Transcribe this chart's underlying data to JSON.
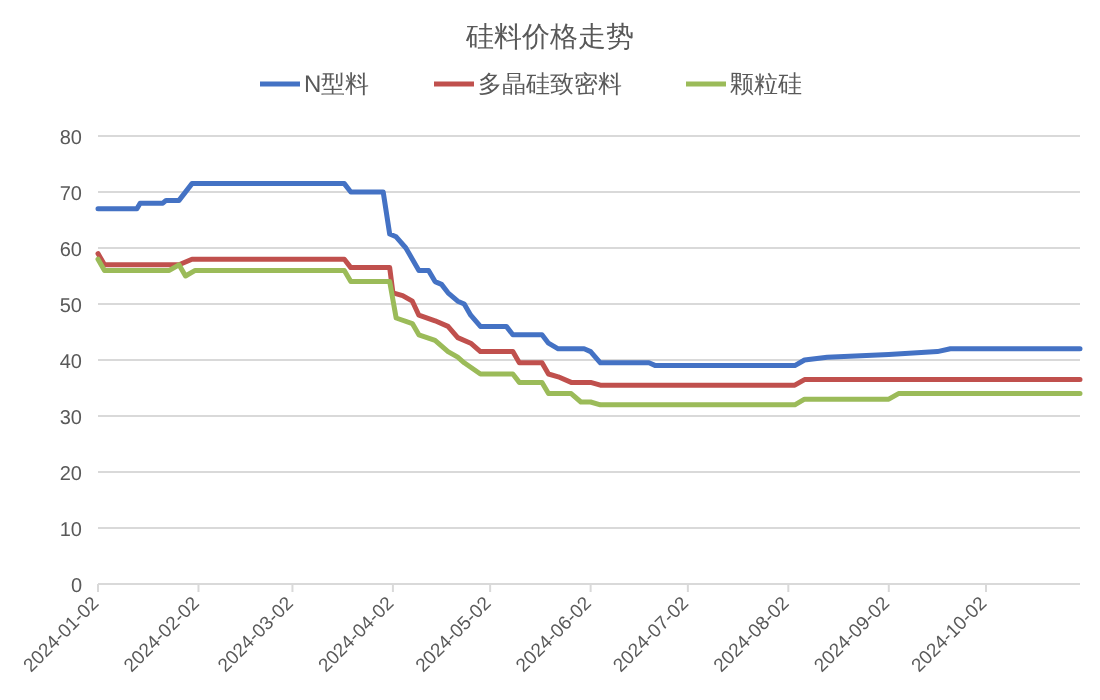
{
  "chart_data": {
    "type": "line",
    "title": "硅料价格走势",
    "legend": "top",
    "grid": "y",
    "xlim": [
      "2024-01-02",
      "2024-10-31"
    ],
    "xticks": [
      "2024-01-02",
      "2024-02-02",
      "2024-03-02",
      "2024-04-02",
      "2024-05-02",
      "2024-06-02",
      "2024-07-02",
      "2024-08-02",
      "2024-09-02",
      "2024-10-02"
    ],
    "ylim": [
      0,
      80
    ],
    "yticks": [
      0,
      10,
      20,
      30,
      40,
      50,
      60,
      70,
      80
    ],
    "series": [
      {
        "name": "N型料",
        "color": "#4472c4",
        "x": [
          "2024-01-02",
          "2024-01-14",
          "2024-01-15",
          "2024-01-22",
          "2024-01-23",
          "2024-01-27",
          "2024-01-31",
          "2024-03-18",
          "2024-03-20",
          "2024-03-30",
          "2024-04-01",
          "2024-04-03",
          "2024-04-06",
          "2024-04-08",
          "2024-04-10",
          "2024-04-13",
          "2024-04-15",
          "2024-04-17",
          "2024-04-19",
          "2024-04-22",
          "2024-04-24",
          "2024-04-26",
          "2024-04-29",
          "2024-05-07",
          "2024-05-09",
          "2024-05-18",
          "2024-05-20",
          "2024-05-23",
          "2024-05-31",
          "2024-06-02",
          "2024-06-05",
          "2024-06-20",
          "2024-06-22",
          "2024-08-04",
          "2024-08-07",
          "2024-08-14",
          "2024-09-02",
          "2024-09-17",
          "2024-09-21",
          "2024-10-31"
        ],
        "values": [
          67,
          67,
          68,
          68,
          68.5,
          68.5,
          71.5,
          71.5,
          70,
          70,
          62.5,
          62,
          60,
          58,
          56,
          56,
          54,
          53.5,
          52,
          50.5,
          50,
          48,
          46,
          46,
          44.5,
          44.5,
          43,
          42,
          42,
          41.5,
          39.5,
          39.5,
          39,
          39,
          40,
          40.5,
          41,
          41.5,
          42,
          42
        ]
      },
      {
        "name": "多晶硅致密料",
        "color": "#c0504d",
        "x": [
          "2024-01-02",
          "2024-01-04",
          "2024-01-27",
          "2024-01-31",
          "2024-03-18",
          "2024-03-20",
          "2024-04-01",
          "2024-04-02",
          "2024-04-05",
          "2024-04-08",
          "2024-04-10",
          "2024-04-15",
          "2024-04-19",
          "2024-04-22",
          "2024-04-26",
          "2024-04-29",
          "2024-05-09",
          "2024-05-11",
          "2024-05-18",
          "2024-05-20",
          "2024-05-23",
          "2024-05-27",
          "2024-06-02",
          "2024-06-05",
          "2024-08-04",
          "2024-08-07",
          "2024-10-31"
        ],
        "values": [
          59,
          57,
          57,
          58,
          58,
          56.5,
          56.5,
          52,
          51.5,
          50.5,
          48,
          47,
          46,
          44,
          43,
          41.5,
          41.5,
          39.5,
          39.5,
          37.5,
          37,
          36,
          36,
          35.5,
          35.5,
          36.5,
          36.5
        ]
      },
      {
        "name": "颗粒硅",
        "color": "#9bbb59",
        "x": [
          "2024-01-02",
          "2024-01-04",
          "2024-01-24",
          "2024-01-27",
          "2024-01-29",
          "2024-02-01",
          "2024-03-18",
          "2024-03-20",
          "2024-04-01",
          "2024-04-03",
          "2024-04-08",
          "2024-04-10",
          "2024-04-15",
          "2024-04-19",
          "2024-04-22",
          "2024-04-24",
          "2024-04-29",
          "2024-05-09",
          "2024-05-11",
          "2024-05-18",
          "2024-05-20",
          "2024-05-27",
          "2024-05-30",
          "2024-06-02",
          "2024-06-05",
          "2024-08-04",
          "2024-08-07",
          "2024-09-02",
          "2024-09-05",
          "2024-10-31"
        ],
        "values": [
          58,
          56,
          56,
          57,
          55,
          56,
          56,
          54,
          54,
          47.5,
          46.5,
          44.5,
          43.5,
          41.5,
          40.5,
          39.5,
          37.5,
          37.5,
          36,
          36,
          34,
          34,
          32.5,
          32.5,
          32,
          32,
          33,
          33,
          34,
          34
        ]
      }
    ]
  }
}
